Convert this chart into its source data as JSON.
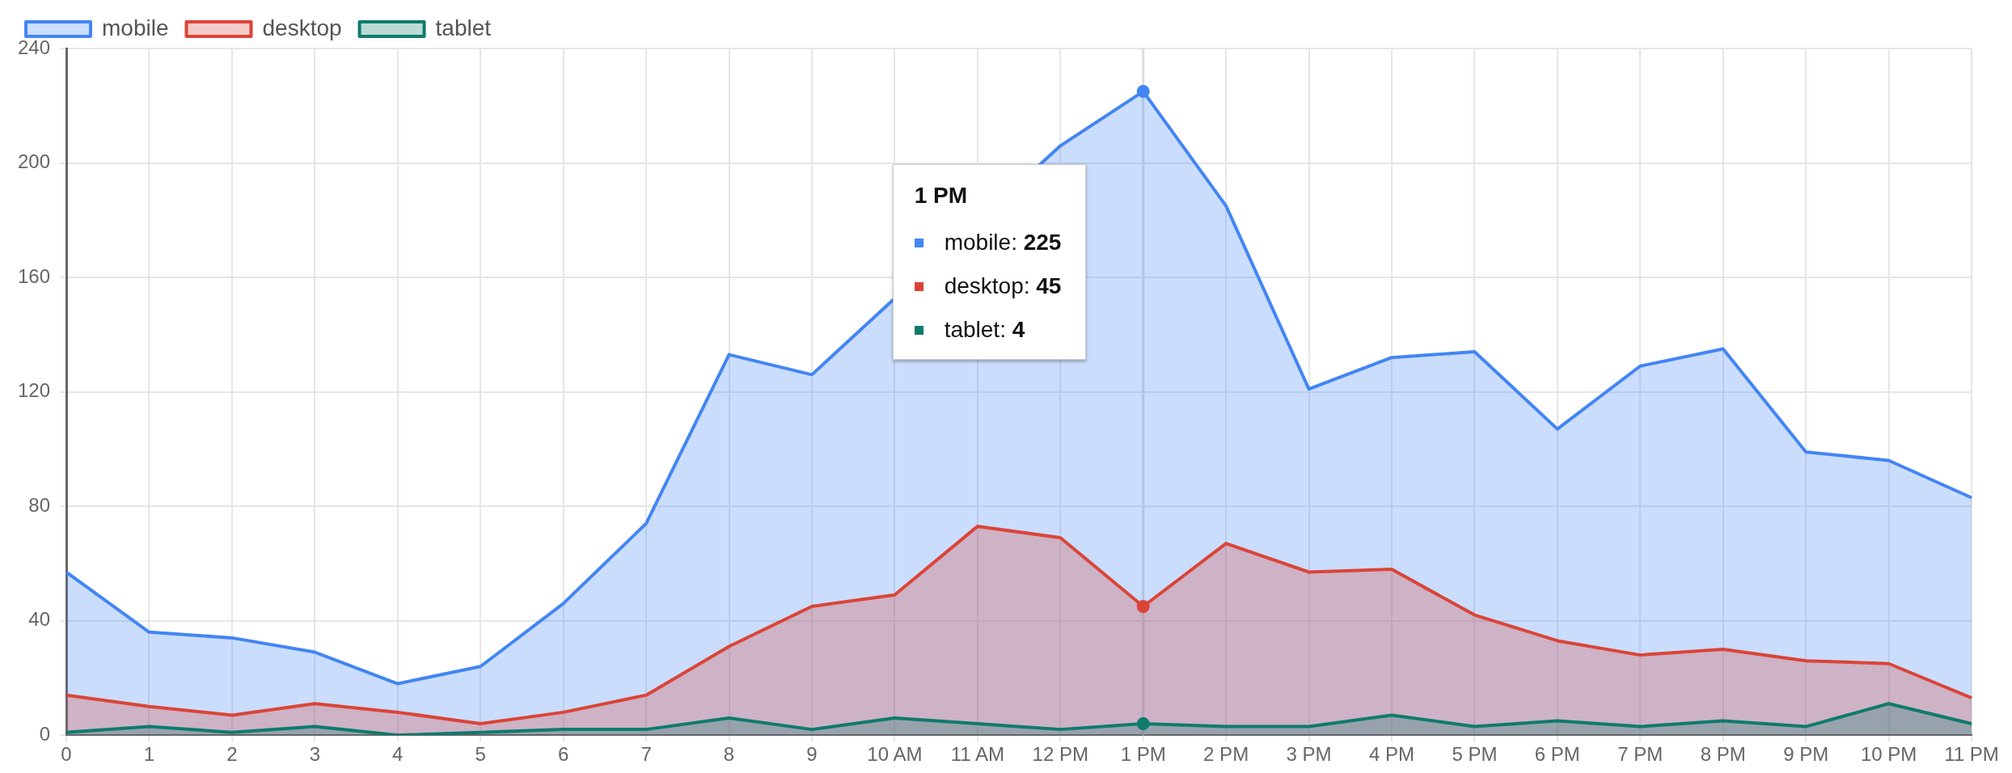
{
  "chart_data": {
    "type": "area",
    "categories": [
      "0",
      "1",
      "2",
      "3",
      "4",
      "5",
      "6",
      "7",
      "8",
      "9",
      "10 AM",
      "11 AM",
      "12 PM",
      "1 PM",
      "2 PM",
      "3 PM",
      "4 PM",
      "5 PM",
      "6 PM",
      "7 PM",
      "8 PM",
      "9 PM",
      "10 PM",
      "11 PM"
    ],
    "series": [
      {
        "name": "mobile",
        "color": "#4285f4",
        "values": [
          57,
          36,
          34,
          29,
          18,
          24,
          46,
          74,
          133,
          126,
          null,
          null,
          206,
          225,
          185,
          121,
          132,
          134,
          107,
          129,
          135,
          99,
          96,
          83
        ]
      },
      {
        "name": "desktop",
        "color": "#db4437",
        "values": [
          14,
          10,
          7,
          11,
          8,
          4,
          8,
          14,
          31,
          45,
          49,
          73,
          69,
          45,
          67,
          57,
          58,
          42,
          33,
          28,
          30,
          26,
          25,
          13
        ]
      },
      {
        "name": "tablet",
        "color": "#0f7b6c",
        "values": [
          1,
          3,
          1,
          3,
          0,
          1,
          2,
          2,
          6,
          2,
          6,
          4,
          2,
          4,
          3,
          3,
          7,
          3,
          5,
          3,
          5,
          3,
          11,
          4
        ]
      }
    ],
    "ylim": [
      0,
      240
    ],
    "yticks": [
      0,
      40,
      80,
      120,
      160,
      200,
      240
    ],
    "grid": true,
    "legend": "top left",
    "ref_lines": [
      {
        "axis": "x",
        "value": "1 PM",
        "color": "#dddddd"
      }
    ],
    "annotations": [
      "1 PM",
      "mobile: 225",
      "desktop: 45",
      "tablet: 4"
    ]
  }
}
